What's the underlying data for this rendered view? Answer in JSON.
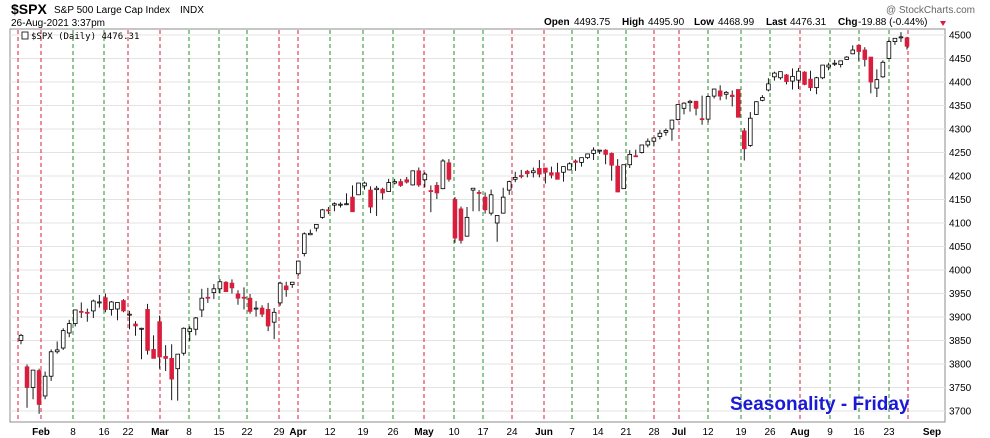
{
  "header": {
    "symbol": "$SPX",
    "name": "S&P 500 Large Cap Index",
    "exchange": "INDX",
    "date": "26-Aug-2021 3:37pm",
    "watermark": "@ StockCharts.com",
    "open_label": "Open",
    "open": "4493.75",
    "high_label": "High",
    "high": "4495.90",
    "low_label": "Low",
    "low": "4468.99",
    "last_label": "Last",
    "last": "4476.31",
    "chg_label": "Chg",
    "chg": "-19.88 (-0.44%)"
  },
  "legend": {
    "text": "$SPX (Daily) 4476.31"
  },
  "annotation": "Seasonality - Friday",
  "colors": {
    "up": "#ffffff",
    "down": "#d81e3c",
    "outline": "#000000",
    "friday_line": "#2a8c2a",
    "monday_line": "#d81e3c",
    "grid": "#e3e3e3"
  },
  "chart_data": {
    "type": "candlestick",
    "ylim": [
      3680,
      4520
    ],
    "y_ticks": [
      3700,
      3750,
      3800,
      3850,
      3900,
      3950,
      4000,
      4050,
      4100,
      4150,
      4200,
      4250,
      4300,
      4350,
      4400,
      4450,
      4500
    ],
    "x_ticks": [
      {
        "label": "Feb",
        "bold": true
      },
      {
        "label": "8",
        "bold": false
      },
      {
        "label": "16",
        "bold": false
      },
      {
        "label": "22",
        "bold": false
      },
      {
        "label": "Mar",
        "bold": true
      },
      {
        "label": "8",
        "bold": false
      },
      {
        "label": "15",
        "bold": false
      },
      {
        "label": "22",
        "bold": false
      },
      {
        "label": "29",
        "bold": false
      },
      {
        "label": "Apr",
        "bold": true
      },
      {
        "label": "12",
        "bold": false
      },
      {
        "label": "19",
        "bold": false
      },
      {
        "label": "26",
        "bold": false
      },
      {
        "label": "May",
        "bold": true
      },
      {
        "label": "10",
        "bold": false
      },
      {
        "label": "17",
        "bold": false
      },
      {
        "label": "24",
        "bold": false
      },
      {
        "label": "Jun",
        "bold": true
      },
      {
        "label": "7",
        "bold": false
      },
      {
        "label": "14",
        "bold": false
      },
      {
        "label": "21",
        "bold": false
      },
      {
        "label": "28",
        "bold": false
      },
      {
        "label": "Jul",
        "bold": true
      },
      {
        "label": "12",
        "bold": false
      },
      {
        "label": "19",
        "bold": false
      },
      {
        "label": "26",
        "bold": false
      },
      {
        "label": "Aug",
        "bold": true
      },
      {
        "label": "9",
        "bold": false
      },
      {
        "label": "16",
        "bold": false
      },
      {
        "label": "23",
        "bold": false
      },
      {
        "label": "Sep",
        "bold": true
      }
    ],
    "series": [
      {
        "values": [
          3850,
          3864,
          3842,
          3861
        ]
      },
      {
        "values": [
          3794,
          3799,
          3707,
          3750
        ]
      },
      {
        "values": [
          3750,
          3785,
          3725,
          3787
        ]
      },
      {
        "values": [
          3786,
          3790,
          3694,
          3714
        ]
      },
      {
        "values": [
          3732,
          3784,
          3725,
          3774
        ]
      },
      {
        "values": [
          3774,
          3831,
          3764,
          3826
        ]
      },
      {
        "values": [
          3826,
          3848,
          3822,
          3830
        ]
      },
      {
        "values": [
          3834,
          3876,
          3830,
          3871
        ]
      },
      {
        "values": [
          3866,
          3894,
          3857,
          3886
        ]
      },
      {
        "values": [
          3886,
          3916,
          3880,
          3915
        ]
      },
      {
        "values": [
          3912,
          3931,
          3898,
          3911
        ]
      },
      {
        "values": [
          3910,
          3918,
          3890,
          3909
        ]
      },
      {
        "values": [
          3913,
          3937,
          3898,
          3934
        ]
      },
      {
        "values": [
          3932,
          3947,
          3920,
          3932
        ]
      },
      {
        "values": [
          3941,
          3950,
          3910,
          3916
        ]
      },
      {
        "values": [
          3916,
          3934,
          3903,
          3932
        ]
      },
      {
        "values": [
          3917,
          3924,
          3893,
          3931
        ]
      },
      {
        "values": [
          3935,
          3938,
          3910,
          3913
        ]
      },
      {
        "values": [
          3906,
          3913,
          3874,
          3906
        ]
      },
      {
        "values": [
          3885,
          3891,
          3860,
          3881
        ]
      },
      {
        "values": [
          3874,
          3877,
          3810,
          3876
        ]
      },
      {
        "values": [
          3916,
          3928,
          3820,
          3829
        ]
      },
      {
        "values": [
          3831,
          3861,
          3812,
          3812
        ]
      },
      {
        "values": [
          3890,
          3903,
          3790,
          3815
        ]
      },
      {
        "values": [
          3816,
          3840,
          3785,
          3812
        ]
      },
      {
        "values": [
          3812,
          3842,
          3723,
          3768
        ]
      },
      {
        "values": [
          3790,
          3797,
          3722,
          3821
        ]
      },
      {
        "values": [
          3823,
          3878,
          3818,
          3876
        ]
      },
      {
        "values": [
          3869,
          3880,
          3849,
          3875
        ]
      },
      {
        "values": [
          3874,
          3900,
          3861,
          3898
        ]
      },
      {
        "values": [
          3915,
          3960,
          3900,
          3940
        ]
      },
      {
        "values": [
          3942,
          3962,
          3930,
          3940
        ]
      },
      {
        "values": [
          3952,
          3970,
          3938,
          3960
        ]
      },
      {
        "values": [
          3960,
          3981,
          3950,
          3975
        ]
      },
      {
        "values": [
          3974,
          3976,
          3955,
          3954
        ]
      },
      {
        "values": [
          3972,
          3980,
          3950,
          3962
        ]
      },
      {
        "values": [
          3949,
          3957,
          3926,
          3940
        ]
      },
      {
        "values": [
          3942,
          3963,
          3916,
          3940
        ]
      },
      {
        "values": [
          3940,
          3949,
          3907,
          3912
        ]
      },
      {
        "values": [
          3917,
          3934,
          3901,
          3919
        ]
      },
      {
        "values": [
          3919,
          3925,
          3900,
          3906
        ]
      },
      {
        "values": [
          3916,
          3930,
          3870,
          3881
        ]
      },
      {
        "values": [
          3889,
          3919,
          3853,
          3910
        ]
      },
      {
        "values": [
          3930,
          3975,
          3924,
          3972
        ]
      },
      {
        "values": [
          3966,
          3975,
          3943,
          3958
        ]
      },
      {
        "values": [
          3969,
          3972,
          3962,
          3974
        ]
      },
      {
        "values": [
          3992,
          4020,
          3988,
          4019
        ]
      },
      {
        "values": [
          4035,
          4080,
          4029,
          4077
        ]
      },
      {
        "values": [
          4075,
          4086,
          4074,
          4078
        ]
      },
      {
        "values": [
          4089,
          4098,
          4082,
          4097
        ]
      },
      {
        "values": [
          4112,
          4130,
          4109,
          4128
        ]
      },
      {
        "values": [
          4128,
          4134,
          4119,
          4127
        ]
      },
      {
        "values": [
          4138,
          4144,
          4125,
          4141
        ]
      },
      {
        "values": [
          4139,
          4144,
          4133,
          4140
        ]
      },
      {
        "values": [
          4141,
          4163,
          4138,
          4141
        ]
      },
      {
        "values": [
          4155,
          4180,
          4154,
          4124
        ]
      },
      {
        "values": [
          4160,
          4184,
          4160,
          4185
        ]
      },
      {
        "values": [
          4179,
          4188,
          4171,
          4185
        ]
      },
      {
        "values": [
          4170,
          4178,
          4121,
          4134
        ]
      },
      {
        "values": [
          4171,
          4179,
          4115,
          4174
        ]
      },
      {
        "values": [
          4172,
          4175,
          4150,
          4164
        ]
      },
      {
        "values": [
          4167,
          4194,
          4167,
          4186
        ]
      },
      {
        "values": [
          4185,
          4194,
          4182,
          4188
        ]
      },
      {
        "values": [
          4188,
          4194,
          4177,
          4180
        ]
      },
      {
        "values": [
          4192,
          4198,
          4184,
          4187
        ]
      },
      {
        "values": [
          4181,
          4209,
          4180,
          4211
        ]
      },
      {
        "values": [
          4211,
          4218,
          4177,
          4181
        ]
      },
      {
        "values": [
          4192,
          4208,
          4176,
          4204
        ]
      },
      {
        "values": [
          4169,
          4180,
          4123,
          4167
        ]
      },
      {
        "values": [
          4180,
          4187,
          4151,
          4164
        ]
      },
      {
        "values": [
          4173,
          4236,
          4172,
          4232
        ]
      },
      {
        "values": [
          4228,
          4236,
          4188,
          4193
        ]
      },
      {
        "values": [
          4150,
          4155,
          4058,
          4068
        ]
      },
      {
        "values": [
          4130,
          4135,
          4056,
          4063
        ]
      },
      {
        "values": [
          4072,
          4134,
          4071,
          4112
        ]
      },
      {
        "values": [
          4170,
          4174,
          4125,
          4174
        ]
      },
      {
        "values": [
          4165,
          4170,
          4125,
          4163
        ]
      },
      {
        "values": [
          4155,
          4165,
          4120,
          4128
        ]
      },
      {
        "values": [
          4121,
          4171,
          4116,
          4160
        ]
      },
      {
        "values": [
          4100,
          4117,
          4060,
          4116
        ]
      },
      {
        "values": [
          4121,
          4175,
          4120,
          4155
        ]
      },
      {
        "values": [
          4170,
          4190,
          4160,
          4188
        ]
      },
      {
        "values": [
          4193,
          4209,
          4187,
          4197
        ]
      },
      {
        "values": [
          4201,
          4213,
          4195,
          4200
        ]
      },
      {
        "values": [
          4210,
          4213,
          4197,
          4205
        ]
      },
      {
        "values": [
          4207,
          4218,
          4197,
          4211
        ]
      },
      {
        "values": [
          4216,
          4234,
          4197,
          4204
        ]
      },
      {
        "values": [
          4217,
          4216,
          4184,
          4208
        ]
      },
      {
        "values": [
          4207,
          4220,
          4195,
          4202
        ]
      },
      {
        "values": [
          4207,
          4228,
          4196,
          4193
        ]
      },
      {
        "values": [
          4208,
          4215,
          4188,
          4220
        ]
      },
      {
        "values": [
          4213,
          4229,
          4212,
          4226
        ]
      },
      {
        "values": [
          4232,
          4235,
          4211,
          4229
        ]
      },
      {
        "values": [
          4229,
          4232,
          4220,
          4239
        ]
      },
      {
        "values": [
          4239,
          4244,
          4236,
          4247
        ]
      },
      {
        "values": [
          4248,
          4261,
          4234,
          4255
        ]
      },
      {
        "values": [
          4255,
          4252,
          4247,
          4255
        ]
      },
      {
        "values": [
          4255,
          4257,
          4225,
          4246
        ]
      },
      {
        "values": [
          4248,
          4250,
          4190,
          4223
        ]
      },
      {
        "values": [
          4221,
          4236,
          4185,
          4166
        ]
      },
      {
        "values": [
          4173,
          4211,
          4173,
          4224
        ]
      },
      {
        "values": [
          4224,
          4255,
          4217,
          4246
        ]
      },
      {
        "values": [
          4243,
          4256,
          4241,
          4241
        ]
      },
      {
        "values": [
          4250,
          4266,
          4248,
          4266
        ]
      },
      {
        "values": [
          4266,
          4280,
          4261,
          4274
        ]
      },
      {
        "values": [
          4274,
          4282,
          4263,
          4281
        ]
      },
      {
        "values": [
          4284,
          4298,
          4278,
          4291
        ]
      },
      {
        "values": [
          4293,
          4301,
          4286,
          4297
        ]
      },
      {
        "values": [
          4300,
          4302,
          4275,
          4319
        ]
      },
      {
        "values": [
          4320,
          4339,
          4318,
          4352
        ]
      },
      {
        "values": [
          4344,
          4357,
          4331,
          4355
        ]
      },
      {
        "values": [
          4356,
          4362,
          4337,
          4359
        ]
      },
      {
        "values": [
          4359,
          4355,
          4329,
          4344
        ]
      },
      {
        "values": [
          4322,
          4371,
          4309,
          4320
        ]
      },
      {
        "values": [
          4321,
          4372,
          4314,
          4369
        ]
      },
      {
        "values": [
          4370,
          4386,
          4365,
          4385
        ]
      },
      {
        "values": [
          4381,
          4393,
          4361,
          4370
        ]
      },
      {
        "values": [
          4374,
          4381,
          4363,
          4378
        ]
      },
      {
        "values": [
          4372,
          4382,
          4348,
          4369
        ]
      },
      {
        "values": [
          4384,
          4384,
          4360,
          4325
        ]
      },
      {
        "values": [
          4296,
          4302,
          4233,
          4258
        ]
      },
      {
        "values": [
          4265,
          4336,
          4262,
          4323
        ]
      },
      {
        "values": [
          4331,
          4359,
          4330,
          4358
        ]
      },
      {
        "values": [
          4361,
          4372,
          4359,
          4367
        ]
      },
      {
        "values": [
          4383,
          4408,
          4380,
          4396
        ]
      },
      {
        "values": [
          4411,
          4422,
          4403,
          4419
        ]
      },
      {
        "values": [
          4409,
          4422,
          4405,
          4422
        ]
      },
      {
        "values": [
          4415,
          4417,
          4395,
          4401
        ]
      },
      {
        "values": [
          4402,
          4429,
          4384,
          4412
        ]
      },
      {
        "values": [
          4404,
          4430,
          4385,
          4423
        ]
      },
      {
        "values": [
          4421,
          4423,
          4393,
          4395
        ]
      },
      {
        "values": [
          4406,
          4424,
          4381,
          4388
        ]
      },
      {
        "values": [
          4388,
          4411,
          4374,
          4409
        ]
      },
      {
        "values": [
          4409,
          4429,
          4406,
          4436
        ]
      },
      {
        "values": [
          4432,
          4441,
          4425,
          4436
        ]
      },
      {
        "values": [
          4440,
          4447,
          4434,
          4440
        ]
      },
      {
        "values": [
          4437,
          4444,
          4431,
          4445
        ]
      },
      {
        "values": [
          4448,
          4455,
          4447,
          4453
        ]
      },
      {
        "values": [
          4460,
          4478,
          4459,
          4468
        ]
      },
      {
        "values": [
          4478,
          4480,
          4445,
          4465
        ]
      },
      {
        "values": [
          4468,
          4474,
          4433,
          4448
        ]
      },
      {
        "values": [
          4453,
          4453,
          4376,
          4400
        ]
      },
      {
        "values": [
          4387,
          4427,
          4368,
          4405
        ]
      },
      {
        "values": [
          4411,
          4446,
          4409,
          4442
        ]
      },
      {
        "values": [
          4450,
          4490,
          4449,
          4486
        ]
      },
      {
        "values": [
          4486,
          4492,
          4479,
          4493
        ]
      },
      {
        "values": [
          4494,
          4506,
          4485,
          4496
        ]
      },
      {
        "values": [
          4494,
          4496,
          4469,
          4476
        ]
      }
    ]
  }
}
